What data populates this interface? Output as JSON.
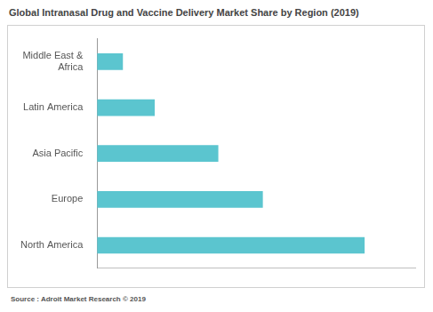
{
  "chart_data": {
    "type": "bar",
    "orientation": "horizontal",
    "title": "Global Intranasal Drug and Vaccine Delivery Market Share by Region (2019)",
    "annotations": [
      "Source : Adroit Market Research © 2019"
    ],
    "categories": [
      "Middle East & Africa",
      "Latin America",
      "Asia Pacific",
      "Europe",
      "North America"
    ],
    "values": [
      4,
      9,
      19,
      26,
      42
    ],
    "color": "#5bc5cf",
    "xlim": [
      0,
      50
    ],
    "grid": false,
    "tick_labels": "y"
  }
}
